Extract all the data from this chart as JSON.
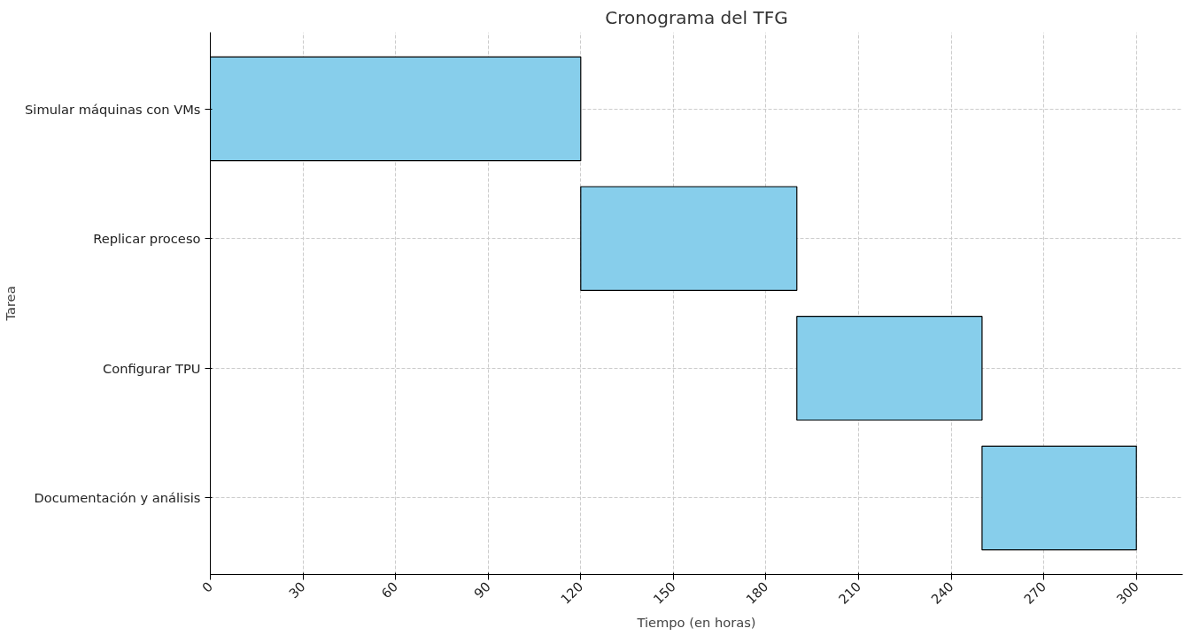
{
  "chart_data": {
    "type": "bar",
    "orientation": "horizontal",
    "title": "Cronograma del TFG",
    "xlabel": "Tiempo (en horas)",
    "ylabel": "Tarea",
    "categories": [
      "Simular máquinas con VMs",
      "Replicar proceso",
      "Configurar TPU",
      "Documentación y análisis"
    ],
    "base": [
      0,
      120,
      190,
      250
    ],
    "values": [
      120,
      70,
      60,
      50
    ],
    "color": "#87ceeb",
    "xlim": [
      0,
      315
    ],
    "xticks": [
      0,
      30,
      60,
      90,
      120,
      150,
      180,
      210,
      240,
      270,
      300
    ],
    "grid": true
  }
}
